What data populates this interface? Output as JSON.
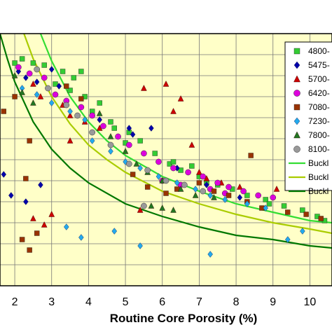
{
  "chart_data": {
    "type": "scatter",
    "xlabel": "Routine Core Porosity (%)",
    "x_ticks": [
      "2",
      "3",
      "4",
      "5",
      "6",
      "7",
      "8",
      "9",
      "10"
    ],
    "xlim": [
      1.6,
      10.6
    ],
    "ylim": [
      0,
      12
    ],
    "grid": true,
    "background": "#FFFFC8",
    "legend_position": "right",
    "series": [
      {
        "name": "4800-",
        "marker": "square",
        "color": "#33CC33",
        "points": [
          [
            2.2,
            10.8
          ],
          [
            2.5,
            10.6
          ],
          [
            2.8,
            10.5
          ],
          [
            3.3,
            10.2
          ],
          [
            3.6,
            9.9
          ],
          [
            3.1,
            9.6
          ],
          [
            3.5,
            9.3
          ],
          [
            3.9,
            9.0
          ],
          [
            4.3,
            8.7
          ],
          [
            4.1,
            8.3
          ],
          [
            4.6,
            7.8
          ],
          [
            5.1,
            7.3
          ],
          [
            5.4,
            6.9
          ],
          [
            5.8,
            6.3
          ],
          [
            6.2,
            5.8
          ],
          [
            6.5,
            5.5
          ],
          [
            7.0,
            5.2
          ],
          [
            7.2,
            4.9
          ],
          [
            7.5,
            4.8
          ],
          [
            7.9,
            4.6
          ],
          [
            8.3,
            4.3
          ],
          [
            8.8,
            4.1
          ],
          [
            9.3,
            3.8
          ],
          [
            9.8,
            3.6
          ],
          [
            10.2,
            3.3
          ],
          [
            3.8,
            10.2
          ],
          [
            2.0,
            10.6
          ],
          [
            6.8,
            5.7
          ],
          [
            5.0,
            6.8
          ],
          [
            8.9,
            3.9
          ],
          [
            10.4,
            3.1
          ],
          [
            6.3,
            5.9
          ],
          [
            4.7,
            7.5
          ]
        ]
      },
      {
        "name": "5475-",
        "marker": "diamond",
        "color": "#0000AA",
        "points": [
          [
            2.1,
            10.2
          ],
          [
            2.3,
            9.9
          ],
          [
            2.6,
            9.7
          ],
          [
            3.0,
            10.3
          ],
          [
            3.2,
            9.5
          ],
          [
            4.3,
            7.9
          ],
          [
            5.1,
            7.5
          ],
          [
            5.2,
            7.2
          ],
          [
            5.7,
            7.5
          ],
          [
            6.4,
            5.6
          ],
          [
            7.2,
            4.8
          ],
          [
            1.7,
            5.3
          ],
          [
            1.9,
            4.3
          ],
          [
            2.3,
            4.0
          ],
          [
            2.7,
            4.8
          ],
          [
            8.1,
            4.2
          ]
        ]
      },
      {
        "name": "5700-",
        "marker": "triangle",
        "color": "#CC0000",
        "points": [
          [
            2.5,
            9.6
          ],
          [
            2.7,
            9.0
          ],
          [
            3.3,
            8.6
          ],
          [
            3.5,
            8.1
          ],
          [
            3.9,
            7.8
          ],
          [
            4.3,
            7.5
          ],
          [
            5.5,
            9.4
          ],
          [
            6.1,
            9.6
          ],
          [
            6.3,
            8.3
          ],
          [
            6.8,
            6.7
          ],
          [
            7.2,
            5.1
          ],
          [
            7.6,
            4.9
          ],
          [
            8.1,
            4.7
          ],
          [
            9.1,
            4.6
          ],
          [
            3.5,
            6.9
          ],
          [
            2.5,
            3.2
          ],
          [
            3.0,
            3.4
          ],
          [
            2.8,
            2.9
          ],
          [
            5.4,
            3.6
          ],
          [
            6.5,
            8.9
          ],
          [
            7.0,
            5.4
          ]
        ]
      },
      {
        "name": "6420-",
        "marker": "circle",
        "color": "#DD00DD",
        "points": [
          [
            2.1,
            10.4
          ],
          [
            2.4,
            10.1
          ],
          [
            2.8,
            9.9
          ],
          [
            3.1,
            9.1
          ],
          [
            3.4,
            8.8
          ],
          [
            3.8,
            8.5
          ],
          [
            4.1,
            8.1
          ],
          [
            4.4,
            7.6
          ],
          [
            4.8,
            7.1
          ],
          [
            5.1,
            6.7
          ],
          [
            5.5,
            6.3
          ],
          [
            5.9,
            5.9
          ],
          [
            6.3,
            5.6
          ],
          [
            6.7,
            5.4
          ],
          [
            7.1,
            5.2
          ],
          [
            7.5,
            4.9
          ],
          [
            7.8,
            4.7
          ],
          [
            8.2,
            4.5
          ],
          [
            8.6,
            4.3
          ],
          [
            9.0,
            4.2
          ],
          [
            6.0,
            5.0
          ],
          [
            6.5,
            4.8
          ],
          [
            7.3,
            4.6
          ],
          [
            7.7,
            4.4
          ]
        ]
      },
      {
        "name": "7080-",
        "marker": "square",
        "color": "#993300",
        "points": [
          [
            1.7,
            8.3
          ],
          [
            2.0,
            9.0
          ],
          [
            2.4,
            6.9
          ],
          [
            3.4,
            9.5
          ],
          [
            3.8,
            8.9
          ],
          [
            5.2,
            5.3
          ],
          [
            5.6,
            4.7
          ],
          [
            6.1,
            4.4
          ],
          [
            6.4,
            4.6
          ],
          [
            7.0,
            4.9
          ],
          [
            7.4,
            4.5
          ],
          [
            7.8,
            4.3
          ],
          [
            8.3,
            4.0
          ],
          [
            8.7,
            3.7
          ],
          [
            9.4,
            3.5
          ],
          [
            9.9,
            3.4
          ],
          [
            10.3,
            3.2
          ],
          [
            2.3,
            5.1
          ],
          [
            2.6,
            2.5
          ],
          [
            2.2,
            2.2
          ],
          [
            2.4,
            1.7
          ],
          [
            8.4,
            6.2
          ]
        ]
      },
      {
        "name": "7230-",
        "marker": "diamond",
        "color": "#22AAEE",
        "points": [
          [
            2.2,
            9.4
          ],
          [
            2.6,
            9.1
          ],
          [
            3.0,
            8.7
          ],
          [
            3.5,
            8.3
          ],
          [
            3.9,
            7.9
          ],
          [
            4.1,
            6.9
          ],
          [
            4.6,
            6.4
          ],
          [
            5.0,
            5.9
          ],
          [
            5.4,
            5.6
          ],
          [
            5.9,
            5.2
          ],
          [
            6.4,
            4.9
          ],
          [
            6.9,
            4.6
          ],
          [
            7.3,
            4.3
          ],
          [
            7.7,
            4.1
          ],
          [
            8.3,
            3.9
          ],
          [
            8.8,
            3.7
          ],
          [
            3.4,
            2.8
          ],
          [
            3.8,
            2.3
          ],
          [
            4.7,
            2.6
          ],
          [
            5.4,
            1.9
          ],
          [
            7.3,
            1.5
          ],
          [
            9.4,
            2.2
          ],
          [
            9.8,
            2.6
          ]
        ]
      },
      {
        "name": "7800-",
        "marker": "triangle",
        "color": "#227722",
        "points": [
          [
            2.0,
            10.0
          ],
          [
            2.2,
            9.2
          ],
          [
            2.5,
            8.7
          ],
          [
            4.3,
            8.2
          ],
          [
            4.6,
            7.1
          ],
          [
            5.0,
            6.4
          ],
          [
            5.3,
            5.8
          ],
          [
            5.6,
            5.4
          ],
          [
            6.0,
            5.0
          ],
          [
            6.5,
            4.6
          ],
          [
            6.9,
            4.3
          ],
          [
            7.4,
            4.2
          ],
          [
            5.7,
            3.8
          ],
          [
            6.0,
            3.7
          ],
          [
            6.3,
            3.6
          ]
        ]
      },
      {
        "name": "8100-",
        "marker": "circle",
        "color": "#999999",
        "points": [
          [
            2.6,
            10.3
          ],
          [
            2.9,
            9.4
          ],
          [
            3.4,
            8.6
          ],
          [
            3.7,
            8.1
          ],
          [
            4.1,
            7.3
          ],
          [
            4.6,
            6.7
          ],
          [
            5.1,
            5.8
          ],
          [
            5.6,
            5.5
          ],
          [
            6.1,
            5.0
          ],
          [
            6.6,
            4.8
          ],
          [
            7.1,
            4.5
          ],
          [
            5.5,
            3.8
          ]
        ]
      }
    ],
    "curves": [
      {
        "name": "Buckl",
        "color": "#33DD33",
        "points": [
          [
            2.7,
            12.0
          ],
          [
            3.0,
            10.7
          ],
          [
            3.5,
            9.0
          ],
          [
            4.0,
            7.8
          ],
          [
            4.5,
            6.9
          ],
          [
            5.0,
            6.2
          ],
          [
            6.0,
            5.2
          ],
          [
            7.0,
            4.5
          ],
          [
            8.0,
            3.9
          ],
          [
            9.0,
            3.5
          ],
          [
            10.0,
            3.1
          ],
          [
            10.6,
            3.0
          ]
        ]
      },
      {
        "name": "Buckl",
        "color": "#AACC00",
        "points": [
          [
            2.25,
            12.0
          ],
          [
            2.5,
            10.8
          ],
          [
            3.0,
            9.0
          ],
          [
            3.5,
            7.7
          ],
          [
            4.0,
            6.7
          ],
          [
            4.5,
            6.0
          ],
          [
            5.0,
            5.4
          ],
          [
            6.0,
            4.5
          ],
          [
            7.0,
            3.9
          ],
          [
            8.0,
            3.4
          ],
          [
            9.0,
            3.0
          ],
          [
            10.0,
            2.7
          ],
          [
            10.6,
            2.5
          ]
        ]
      },
      {
        "name": "Buckl",
        "color": "#007700",
        "points": [
          [
            1.6,
            12.0
          ],
          [
            1.8,
            10.8
          ],
          [
            2.0,
            9.7
          ],
          [
            2.5,
            7.8
          ],
          [
            3.0,
            6.5
          ],
          [
            3.5,
            5.6
          ],
          [
            4.0,
            4.9
          ],
          [
            5.0,
            3.9
          ],
          [
            6.0,
            3.3
          ],
          [
            7.0,
            2.8
          ],
          [
            8.0,
            2.4
          ],
          [
            9.0,
            2.2
          ],
          [
            10.0,
            1.9
          ],
          [
            10.6,
            1.8
          ]
        ]
      }
    ]
  }
}
